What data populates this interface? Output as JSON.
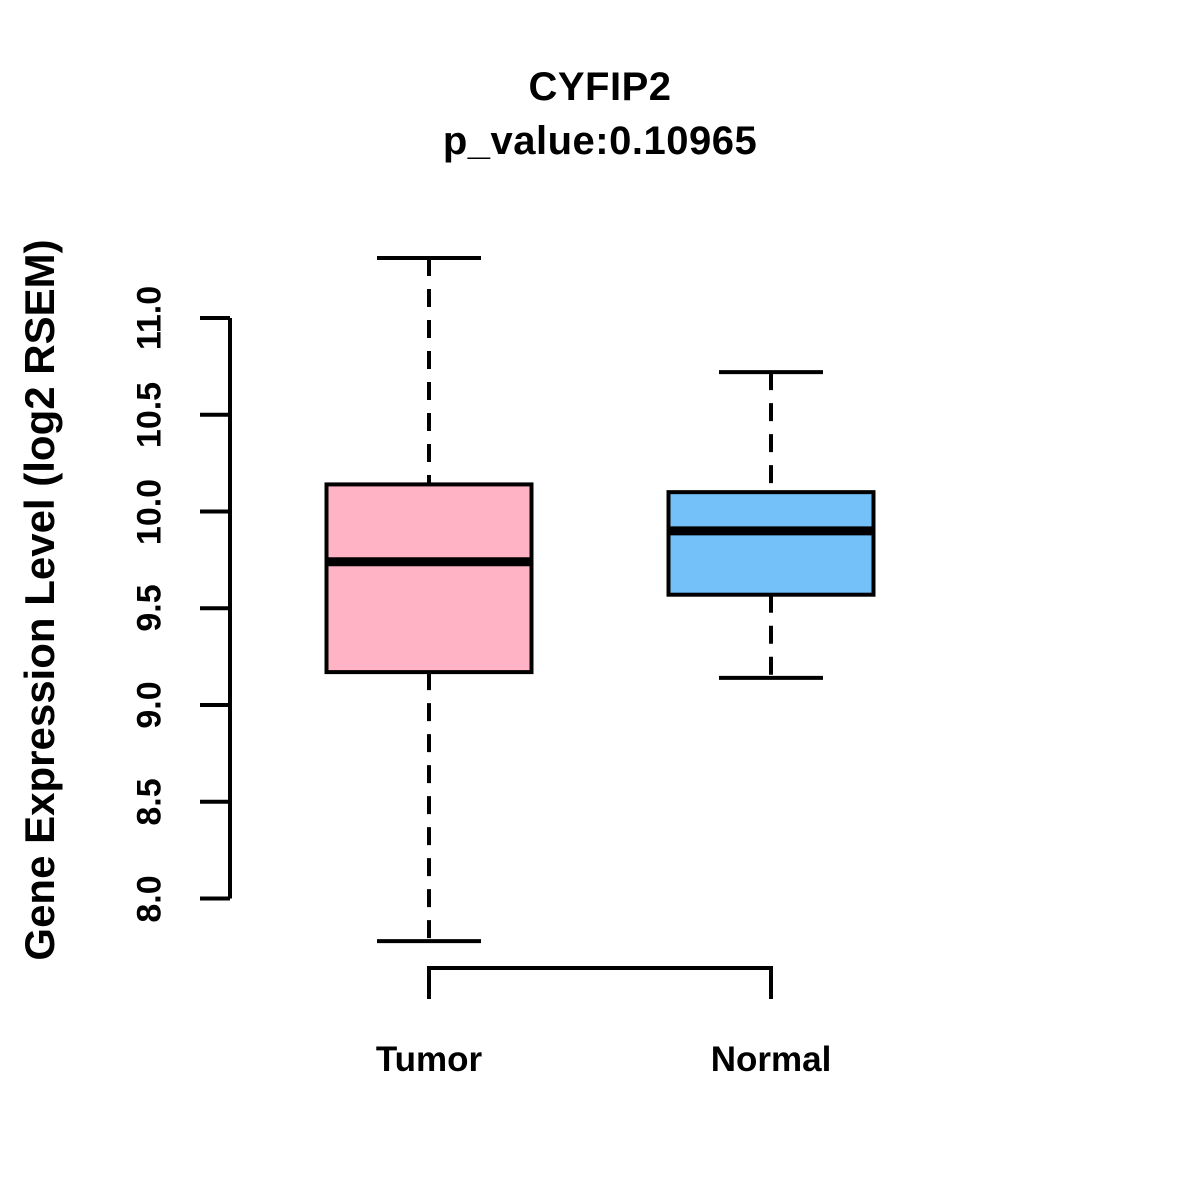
{
  "figure": {
    "background": "#FFFFFF",
    "line_color": "#000000"
  },
  "chart_data": {
    "type": "boxplot",
    "title": "CYFIP2",
    "subtitle": "p_value:0.10965",
    "gene": "CYFIP2",
    "p_value": 0.10965,
    "ylabel": "Gene Expression Level (log2 RSEM)",
    "xlabel": "",
    "ylim": [
      8.0,
      11.0
    ],
    "yticks": [
      "8.0",
      "8.5",
      "9.0",
      "9.5",
      "10.0",
      "10.5",
      "11.0"
    ],
    "grid": false,
    "legend": "none",
    "whisker_style": "dashed",
    "groups": [
      {
        "label": "Tumor",
        "fill": "#FFB3C5",
        "whisker_low": 7.78,
        "q1": 9.17,
        "median": 9.74,
        "q3": 10.14,
        "whisker_high": 11.31
      },
      {
        "label": "Normal",
        "fill": "#74C0F8",
        "whisker_low": 9.14,
        "q1": 9.57,
        "median": 9.9,
        "q3": 10.1,
        "whisker_high": 10.72
      }
    ]
  }
}
